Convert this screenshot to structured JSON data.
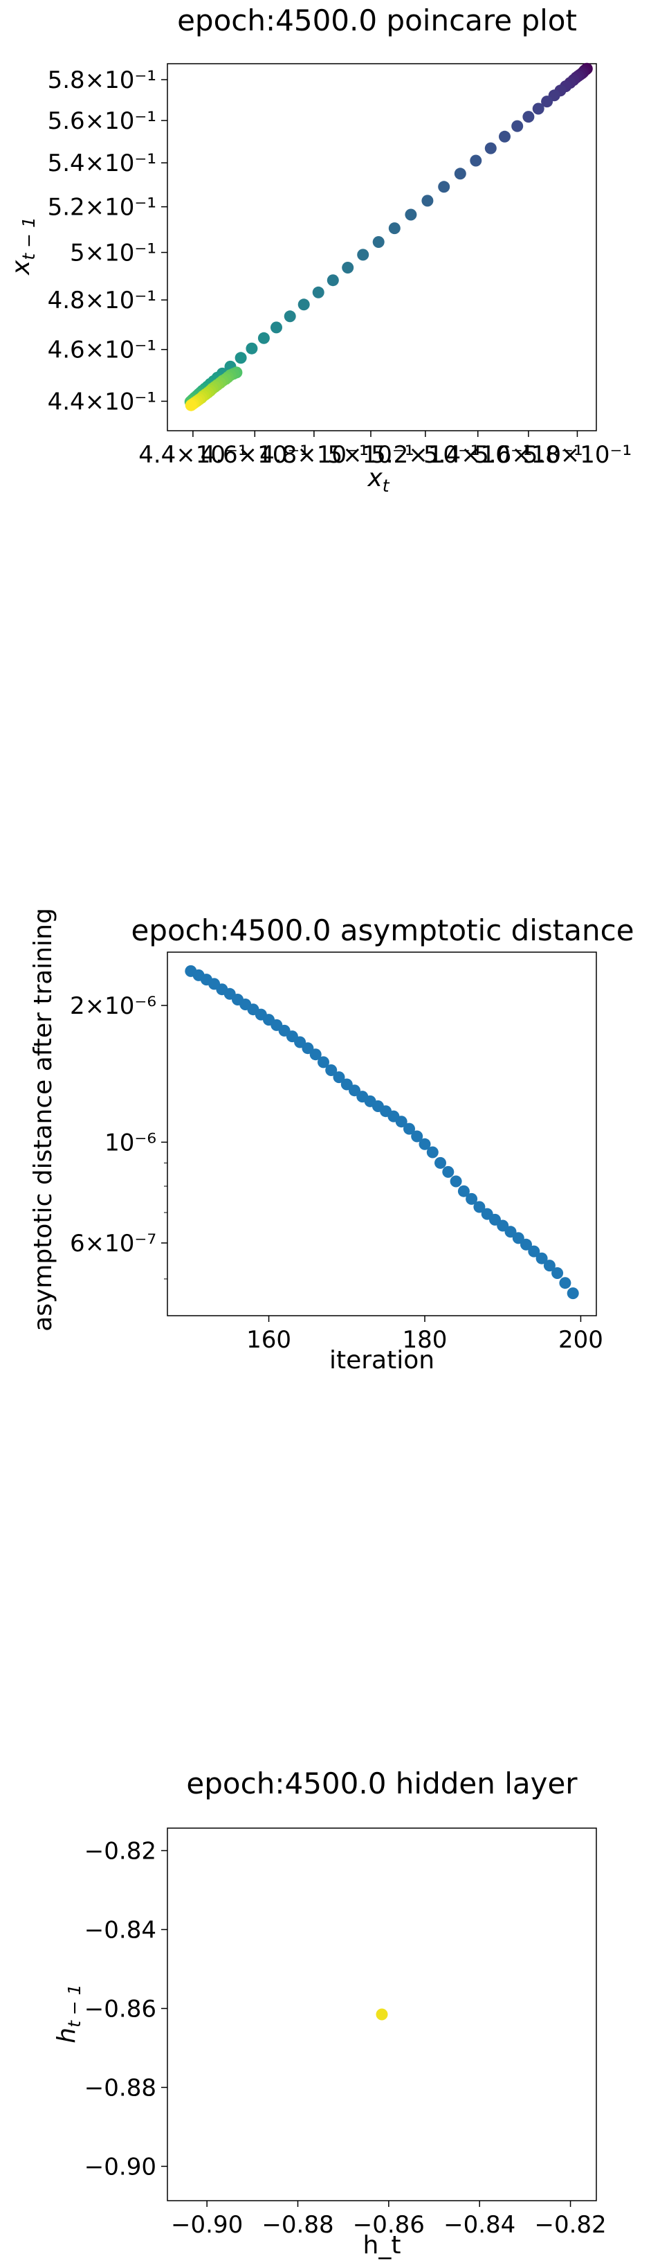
{
  "chart_data": [
    {
      "type": "scatter",
      "title": "epoch:4500.0 poincare plot",
      "xlabel": "x_t",
      "ylabel": "x_{t-1}",
      "x_scale": "log",
      "y_scale": "log",
      "xlim": [
        0.432,
        0.588
      ],
      "ylim": [
        0.429,
        0.588
      ],
      "colormap": "viridis",
      "color_order": "dark purple at upper right (earliest) to yellow at lower left (latest)",
      "xticks": [
        {
          "value": 0.44,
          "label": "4.4×10⁻¹"
        },
        {
          "value": 0.46,
          "label": "4.6×10⁻¹"
        },
        {
          "value": 0.48,
          "label": "4.8×10⁻¹"
        },
        {
          "value": 0.5,
          "label": "5×10⁻¹"
        },
        {
          "value": 0.52,
          "label": "5.2×10⁻¹"
        },
        {
          "value": 0.54,
          "label": "5.4×10⁻¹"
        },
        {
          "value": 0.56,
          "label": "5.6×10⁻¹"
        },
        {
          "value": 0.58,
          "label": "5.8×10⁻¹"
        }
      ],
      "yticks": [
        {
          "value": 0.44,
          "label": "4.4×10⁻¹"
        },
        {
          "value": 0.46,
          "label": "4.6×10⁻¹"
        },
        {
          "value": 0.48,
          "label": "4.8×10⁻¹"
        },
        {
          "value": 0.5,
          "label": "5×10⁻¹"
        },
        {
          "value": 0.52,
          "label": "5.2×10⁻¹"
        },
        {
          "value": 0.54,
          "label": "5.4×10⁻¹"
        },
        {
          "value": 0.56,
          "label": "5.6×10⁻¹"
        },
        {
          "value": 0.58,
          "label": "5.8×10⁻¹"
        }
      ],
      "points": [
        [
          0.584,
          0.5855
        ],
        [
          0.5835,
          0.585
        ],
        [
          0.583,
          0.5845
        ],
        [
          0.5825,
          0.5838
        ],
        [
          0.582,
          0.5832
        ],
        [
          0.5812,
          0.5825
        ],
        [
          0.5804,
          0.5818
        ],
        [
          0.5795,
          0.581
        ],
        [
          0.5784,
          0.5798
        ],
        [
          0.577,
          0.5784
        ],
        [
          0.5752,
          0.5767
        ],
        [
          0.573,
          0.5746
        ],
        [
          0.5705,
          0.5722
        ],
        [
          0.5675,
          0.5692
        ],
        [
          0.564,
          0.5657
        ],
        [
          0.56,
          0.5618
        ],
        [
          0.5555,
          0.5573
        ],
        [
          0.5505,
          0.5523
        ],
        [
          0.545,
          0.5468
        ],
        [
          0.5392,
          0.541
        ],
        [
          0.5332,
          0.535
        ],
        [
          0.527,
          0.529
        ],
        [
          0.5208,
          0.5227
        ],
        [
          0.5146,
          0.5165
        ],
        [
          0.5086,
          0.5105
        ],
        [
          0.5028,
          0.5045
        ],
        [
          0.4972,
          0.499
        ],
        [
          0.4918,
          0.4935
        ],
        [
          0.4866,
          0.4882
        ],
        [
          0.4815,
          0.4831
        ],
        [
          0.4765,
          0.4781
        ],
        [
          0.4718,
          0.4733
        ],
        [
          0.4672,
          0.4688
        ],
        [
          0.463,
          0.4645
        ],
        [
          0.459,
          0.4604
        ],
        [
          0.4554,
          0.4567
        ],
        [
          0.452,
          0.4533
        ],
        [
          0.4494,
          0.4506
        ],
        [
          0.4478,
          0.449
        ],
        [
          0.4466,
          0.4477
        ],
        [
          0.4455,
          0.4466
        ],
        [
          0.4446,
          0.4456
        ],
        [
          0.4438,
          0.4448
        ],
        [
          0.443,
          0.444
        ],
        [
          0.4424,
          0.4433
        ],
        [
          0.4418,
          0.4427
        ],
        [
          0.4412,
          0.442
        ],
        [
          0.4405,
          0.4413
        ],
        [
          0.4398,
          0.4405
        ],
        [
          0.4392,
          0.4398
        ],
        [
          0.454,
          0.451
        ],
        [
          0.453,
          0.4505
        ],
        [
          0.452,
          0.45
        ],
        [
          0.4512,
          0.4492
        ],
        [
          0.4505,
          0.4485
        ],
        [
          0.4495,
          0.4478
        ],
        [
          0.4487,
          0.447
        ],
        [
          0.4478,
          0.4462
        ],
        [
          0.447,
          0.4455
        ],
        [
          0.4462,
          0.4448
        ],
        [
          0.4455,
          0.444
        ],
        [
          0.4448,
          0.4433
        ],
        [
          0.444,
          0.4426
        ],
        [
          0.4433,
          0.442
        ],
        [
          0.4427,
          0.4413
        ],
        [
          0.442,
          0.4407
        ],
        [
          0.4413,
          0.4401
        ],
        [
          0.4406,
          0.4395
        ],
        [
          0.44,
          0.439
        ],
        [
          0.4394,
          0.4385
        ]
      ]
    },
    {
      "type": "scatter",
      "title": "epoch:4500.0 asymptotic distance",
      "xlabel": "iteration",
      "ylabel": "asymptotic distance after training",
      "y_scale": "log",
      "xlim": [
        147.0,
        202.0
      ],
      "ylim": [
        4.15e-07,
        2.62e-06
      ],
      "color": "#1f77b4",
      "xticks": [
        {
          "value": 160,
          "label": "160"
        },
        {
          "value": 180,
          "label": "180"
        },
        {
          "value": 200,
          "label": "200"
        }
      ],
      "yticks": [
        {
          "value": 2e-06,
          "label": "2×10⁻⁶"
        },
        {
          "value": 1e-06,
          "label": "10⁻⁶"
        },
        {
          "value": 6e-07,
          "label": "6×10⁻⁷"
        }
      ],
      "x": [
        150,
        151,
        152,
        153,
        154,
        155,
        156,
        157,
        158,
        159,
        160,
        161,
        162,
        163,
        164,
        165,
        166,
        167,
        168,
        169,
        170,
        171,
        172,
        173,
        174,
        175,
        176,
        177,
        178,
        179,
        180,
        181,
        182,
        183,
        184,
        185,
        186,
        187,
        188,
        189,
        190,
        191,
        192,
        193,
        194,
        195,
        196,
        197,
        198,
        199
      ],
      "y": [
        2.38e-06,
        2.33e-06,
        2.28e-06,
        2.23e-06,
        2.17e-06,
        2.12e-06,
        2.06e-06,
        2.01e-06,
        1.96e-06,
        1.91e-06,
        1.86e-06,
        1.81e-06,
        1.76e-06,
        1.71e-06,
        1.66e-06,
        1.61e-06,
        1.56e-06,
        1.5e-06,
        1.44e-06,
        1.39e-06,
        1.34e-06,
        1.3e-06,
        1.26e-06,
        1.23e-06,
        1.2e-06,
        1.17e-06,
        1.14e-06,
        1.11e-06,
        1.07e-06,
        1.03e-06,
        9.9e-07,
        9.5e-07,
        9e-07,
        8.6e-07,
        8.2e-07,
        7.8e-07,
        7.5e-07,
        7.2e-07,
        6.95e-07,
        6.75e-07,
        6.55e-07,
        6.35e-07,
        6.15e-07,
        5.95e-07,
        5.75e-07,
        5.55e-07,
        5.35e-07,
        5.15e-07,
        4.9e-07,
        4.65e-07
      ]
    },
    {
      "type": "scatter",
      "title": "epoch:4500.0 hidden layer",
      "xlabel": "h_t",
      "ylabel": "h_{t-1}",
      "xlim": [
        -0.9087,
        -0.8143
      ],
      "ylim": [
        -0.9087,
        -0.8143
      ],
      "color": "#f0e11e",
      "xticks": [
        {
          "value": -0.9,
          "label": "−0.90"
        },
        {
          "value": -0.88,
          "label": "−0.88"
        },
        {
          "value": -0.86,
          "label": "−0.86"
        },
        {
          "value": -0.84,
          "label": "−0.84"
        },
        {
          "value": -0.82,
          "label": "−0.82"
        }
      ],
      "yticks": [
        {
          "value": -0.82,
          "label": "−0.82"
        },
        {
          "value": -0.84,
          "label": "−0.84"
        },
        {
          "value": -0.86,
          "label": "−0.86"
        },
        {
          "value": -0.88,
          "label": "−0.88"
        },
        {
          "value": -0.9,
          "label": "−0.90"
        }
      ],
      "points": [
        [
          -0.8615,
          -0.8615
        ]
      ]
    }
  ]
}
